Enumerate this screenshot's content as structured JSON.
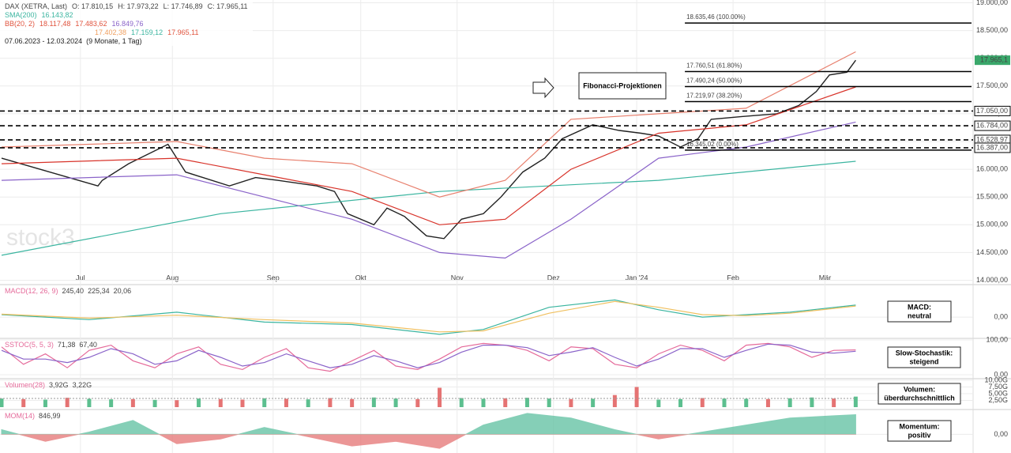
{
  "chart_data": [
    {
      "type": "line",
      "title": "DAX (XETRA, Last)",
      "ohlc": [
        "O: 17.810,15",
        "H: 17.973,22",
        "L: 17.746,89",
        "C: 17.965,11"
      ],
      "legends": [
        {
          "name": "SMA(200)",
          "color": "#3bb5a0",
          "values": [
            "16.143,82"
          ]
        },
        {
          "name": "BB(20, 2)",
          "color": "#e0533d",
          "values": [
            "18.117,48",
            "17.483,62",
            "16.849,76"
          ]
        }
      ],
      "ichimoku_values": [
        "17.402,38",
        "17.159,12",
        "17.965,11"
      ],
      "date_range": "07.06.2023 - 12.03.2024",
      "period": "(9 Monate, 1 Tag)",
      "watermark": "stock3",
      "annotation": "Fibonacci-Projektionen",
      "xlim": [
        0,
        198
      ],
      "xticks": [
        {
          "value": 18,
          "label": "Jul"
        },
        {
          "value": 39,
          "label": "Aug"
        },
        {
          "value": 62,
          "label": "Sep"
        },
        {
          "value": 82,
          "label": "Okt"
        },
        {
          "value": 104,
          "label": "Nov"
        },
        {
          "value": 126,
          "label": "Dez"
        },
        {
          "value": 145,
          "label": "Jan '24"
        },
        {
          "value": 167,
          "label": "Feb"
        },
        {
          "value": 188,
          "label": "Mär"
        }
      ],
      "ylim": [
        13950,
        19050
      ],
      "yticks": [
        {
          "value": 14000,
          "label": "14.000,00"
        },
        {
          "value": 14500,
          "label": "14.500,00"
        },
        {
          "value": 15000,
          "label": "15.000,00"
        },
        {
          "value": 15500,
          "label": "15.500,00"
        },
        {
          "value": 16000,
          "label": "16.000,00"
        },
        {
          "value": 16500,
          "label": "16.500,00"
        },
        {
          "value": 17000,
          "label": "17.000,00"
        },
        {
          "value": 17500,
          "label": "17.500,00"
        },
        {
          "value": 18000,
          "label": "18.000,00"
        },
        {
          "value": 18500,
          "label": "18.500,00"
        },
        {
          "value": 19000,
          "label": "19.000,00"
        }
      ],
      "series": [
        {
          "color": "#222222",
          "x": [
            0,
            22,
            23,
            29,
            38,
            42,
            52,
            58,
            63,
            72,
            76,
            79,
            85,
            88,
            92,
            97,
            101,
            105,
            110,
            114,
            119,
            124,
            128,
            135,
            141,
            146,
            150,
            155,
            159,
            162,
            169,
            177,
            182,
            186,
            189,
            193,
            195
          ],
          "values": [
            16200,
            15700,
            15800,
            16100,
            16450,
            15950,
            15700,
            15850,
            15800,
            15700,
            15600,
            15200,
            15000,
            15300,
            15150,
            14800,
            14750,
            15100,
            15200,
            15500,
            15950,
            16200,
            16550,
            16800,
            16700,
            16650,
            16600,
            16400,
            16550,
            16900,
            16950,
            17000,
            17150,
            17400,
            17700,
            17750,
            17965.11
          ]
        },
        {
          "color": "#3bb5a0",
          "x": [
            0,
            50,
            100,
            150,
            195
          ],
          "values": [
            14450,
            15200,
            15600,
            15800,
            16143.82
          ]
        },
        {
          "color": "#e8806e",
          "x": [
            0,
            40,
            60,
            80,
            100,
            115,
            130,
            150,
            170,
            195
          ],
          "values": [
            16400,
            16500,
            16200,
            16100,
            15500,
            15800,
            16900,
            17000,
            17100,
            18117.48
          ]
        },
        {
          "color": "#d8332a",
          "x": [
            0,
            40,
            60,
            80,
            100,
            115,
            130,
            150,
            170,
            195
          ],
          "values": [
            16100,
            16200,
            15900,
            15600,
            15000,
            15100,
            16000,
            16650,
            16800,
            17483.62
          ]
        },
        {
          "color": "#8a63c9",
          "x": [
            0,
            40,
            60,
            80,
            100,
            115,
            130,
            150,
            170,
            195
          ],
          "values": [
            15800,
            15900,
            15500,
            15100,
            14500,
            14400,
            15100,
            16200,
            16400,
            16849.76
          ]
        }
      ],
      "levels": [
        {
          "value": 17050,
          "label": "17.050,00"
        },
        {
          "value": 16784,
          "label": "16.784,00"
        },
        {
          "value": 16528.97,
          "label": "16.528,97"
        },
        {
          "value": 16387,
          "label": "16.387,00"
        }
      ],
      "fib_start": 156,
      "fib": [
        {
          "value": 18635.46,
          "label": "18.635,46 (100.00%)"
        },
        {
          "value": 17760.51,
          "label": "17.760,51 (61.80%)"
        },
        {
          "value": 17490.24,
          "label": "17.490,24 (50.00%)"
        },
        {
          "value": 17219.97,
          "label": "17.219,97 (38.20%)"
        },
        {
          "value": 16345.02,
          "label": "16.345,02 (0.00%)"
        }
      ],
      "last_price": {
        "value": 17965.11,
        "label": "17.965,1"
      }
    },
    {
      "type": "line",
      "legend": "MACD(12, 26, 9)",
      "legend_values": [
        "245,40",
        "225,34",
        "20,06"
      ],
      "note": [
        "MACD:",
        "neutral"
      ],
      "ylim": [
        -400,
        630
      ],
      "yticks": [
        {
          "value": 0,
          "label": "0,00"
        }
      ],
      "series": [
        {
          "color": "#3bb5a0",
          "x": [
            0,
            20,
            40,
            60,
            80,
            100,
            110,
            125,
            140,
            150,
            160,
            170,
            180,
            195
          ],
          "values": [
            50,
            -50,
            100,
            -100,
            -150,
            -350,
            -250,
            200,
            350,
            150,
            0,
            50,
            100,
            245.4
          ]
        },
        {
          "color": "#f0c060",
          "x": [
            0,
            20,
            40,
            60,
            80,
            100,
            110,
            125,
            140,
            150,
            160,
            170,
            180,
            195
          ],
          "values": [
            60,
            -20,
            40,
            -50,
            -120,
            -300,
            -280,
            80,
            320,
            200,
            50,
            30,
            80,
            225.34
          ]
        }
      ]
    },
    {
      "type": "line",
      "legend": "SSTOC(5, 5, 3)",
      "legend_values": [
        "71,38",
        "67,40"
      ],
      "note": [
        "Slow-Stochastik:",
        "steigend"
      ],
      "ylim": [
        0,
        100
      ],
      "yticks": [
        {
          "value": 100,
          "label": "100,00"
        },
        {
          "value": 0,
          "label": "0,00"
        }
      ],
      "series": [
        {
          "color": "#e56a9a",
          "x": [
            0,
            5,
            10,
            15,
            20,
            25,
            30,
            35,
            40,
            45,
            50,
            55,
            60,
            65,
            70,
            75,
            80,
            85,
            90,
            95,
            100,
            105,
            110,
            115,
            120,
            125,
            130,
            135,
            140,
            145,
            150,
            155,
            160,
            165,
            170,
            175,
            180,
            185,
            190,
            195
          ],
          "values": [
            80,
            30,
            60,
            20,
            70,
            85,
            40,
            20,
            60,
            80,
            30,
            15,
            50,
            75,
            20,
            10,
            40,
            70,
            25,
            15,
            45,
            80,
            90,
            85,
            70,
            40,
            80,
            75,
            30,
            20,
            60,
            85,
            70,
            40,
            85,
            90,
            80,
            50,
            70,
            71.38
          ]
        },
        {
          "color": "#8a63c9",
          "x": [
            0,
            5,
            10,
            15,
            20,
            25,
            30,
            35,
            40,
            45,
            50,
            55,
            60,
            65,
            70,
            75,
            80,
            85,
            90,
            95,
            100,
            105,
            110,
            115,
            120,
            125,
            130,
            135,
            140,
            145,
            150,
            155,
            160,
            165,
            170,
            175,
            180,
            185,
            190,
            195
          ],
          "values": [
            70,
            45,
            45,
            35,
            50,
            75,
            60,
            30,
            40,
            70,
            50,
            25,
            35,
            60,
            40,
            20,
            30,
            55,
            40,
            20,
            35,
            65,
            85,
            85,
            78,
            55,
            65,
            78,
            50,
            25,
            45,
            75,
            75,
            50,
            70,
            88,
            85,
            65,
            62,
            67.4
          ]
        }
      ]
    },
    {
      "type": "bar",
      "legend": "Volumen(28)",
      "legend_values": [
        {
          "value": 3920000000,
          "label": "3,92G"
        },
        {
          "value": 3220000000,
          "label": "3,22G"
        }
      ],
      "note": [
        "Volumen:",
        "überdurchschnittlich"
      ],
      "ylim": [
        0,
        10000000000
      ],
      "yticks": [
        {
          "value": 2500000000,
          "label": "2,50G"
        },
        {
          "value": 5000000000,
          "label": "5,00G"
        },
        {
          "value": 7500000000,
          "label": "7,50G"
        },
        {
          "value": 10000000000,
          "label": "10,00G"
        }
      ],
      "x": [
        0,
        5,
        10,
        15,
        20,
        25,
        30,
        35,
        40,
        45,
        50,
        55,
        60,
        65,
        70,
        75,
        80,
        85,
        90,
        95,
        100,
        105,
        110,
        115,
        120,
        125,
        130,
        135,
        140,
        145,
        150,
        155,
        160,
        165,
        170,
        175,
        180,
        185,
        190,
        195
      ],
      "values": [
        3200000000,
        3000000000,
        2800000000,
        3500000000,
        3100000000,
        2900000000,
        3000000000,
        2700000000,
        2600000000,
        3200000000,
        3000000000,
        2800000000,
        3300000000,
        3100000000,
        2900000000,
        3400000000,
        3000000000,
        3600000000,
        3200000000,
        3000000000,
        7200000000,
        3400000000,
        3100000000,
        3300000000,
        3500000000,
        3200000000,
        3000000000,
        3100000000,
        4500000000,
        7500000000,
        2800000000,
        3000000000,
        3400000000,
        3200000000,
        3100000000,
        3000000000,
        3300000000,
        3600000000,
        3200000000,
        3920000000
      ],
      "colors": [
        "#5cbf8f",
        "#e57373",
        "#5cbf8f",
        "#e57373",
        "#5cbf8f",
        "#5cbf8f",
        "#e57373",
        "#5cbf8f",
        "#e57373",
        "#5cbf8f",
        "#e57373",
        "#e57373",
        "#5cbf8f",
        "#e57373",
        "#5cbf8f",
        "#e57373",
        "#e57373",
        "#5cbf8f",
        "#5cbf8f",
        "#e57373",
        "#e57373",
        "#5cbf8f",
        "#5cbf8f",
        "#e57373",
        "#5cbf8f",
        "#5cbf8f",
        "#e57373",
        "#5cbf8f",
        "#e57373",
        "#e57373",
        "#5cbf8f",
        "#5cbf8f",
        "#e57373",
        "#5cbf8f",
        "#5cbf8f",
        "#e57373",
        "#5cbf8f",
        "#5cbf8f",
        "#e57373",
        "#5cbf8f"
      ]
    },
    {
      "type": "area",
      "legend": "MOM(14)",
      "legend_values": [
        "846,99"
      ],
      "note": [
        "Momentum:",
        "positiv"
      ],
      "ylim": [
        -700,
        1000
      ],
      "yticks": [
        {
          "value": 0,
          "label": "0,00"
        }
      ],
      "series": [
        {
          "color": "#5cbf9f",
          "negative_color": "#e57373",
          "x": [
            0,
            10,
            20,
            30,
            40,
            50,
            60,
            70,
            80,
            90,
            100,
            110,
            120,
            130,
            140,
            150,
            160,
            170,
            180,
            190,
            195
          ],
          "values": [
            200,
            -300,
            100,
            600,
            -400,
            -200,
            300,
            -100,
            -500,
            -300,
            -600,
            400,
            900,
            700,
            200,
            -200,
            100,
            400,
            700,
            800,
            846.99
          ]
        }
      ]
    }
  ]
}
